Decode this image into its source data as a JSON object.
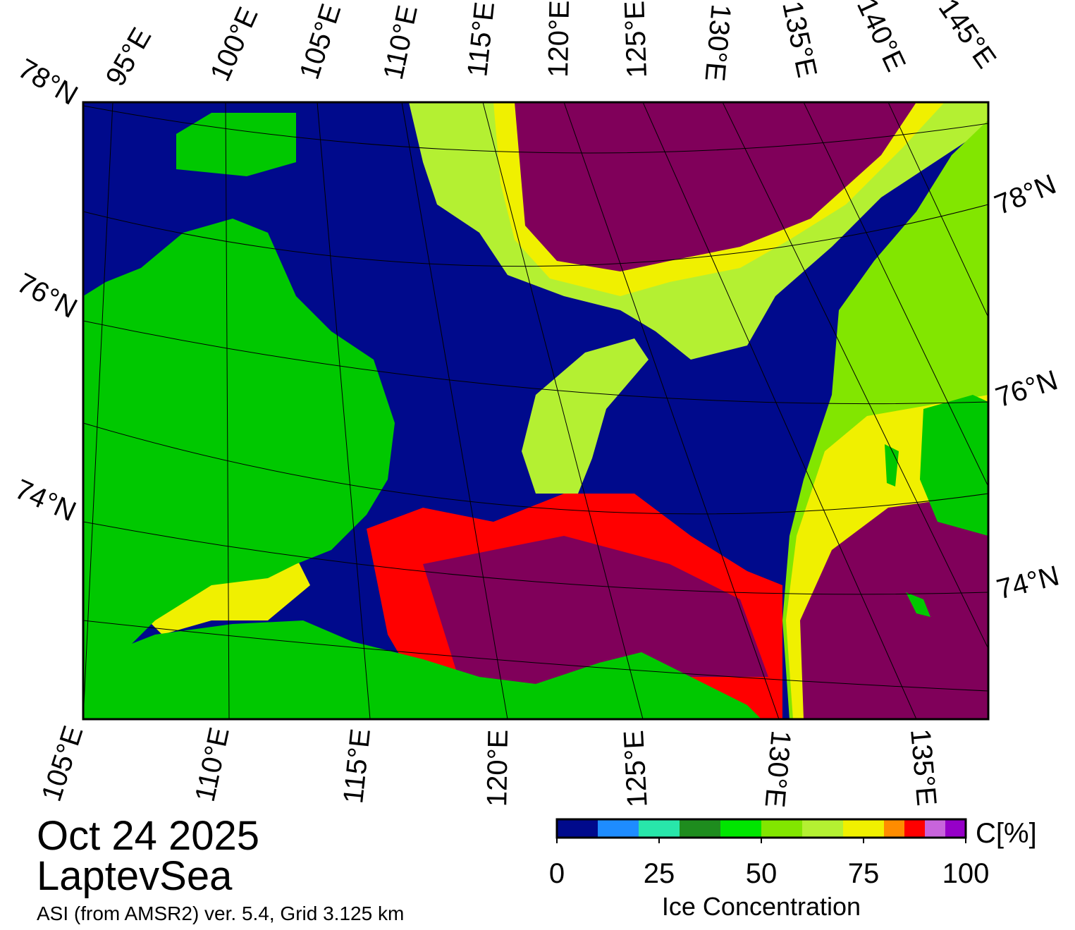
{
  "map": {
    "top_labels": [
      "95°E",
      "100°E",
      "105°E",
      "110°E",
      "115°E",
      "120°E",
      "125°E",
      "130°E",
      "135°E",
      "140°E",
      "145°E"
    ],
    "left_labels": [
      "78°N",
      "76°N",
      "74°N"
    ],
    "right_labels": [
      "78°N",
      "76°N",
      "74°N"
    ],
    "bottom_labels": [
      "105°E",
      "110°E",
      "115°E",
      "120°E",
      "125°E",
      "130°E",
      "135°E"
    ]
  },
  "date": "Oct 24 2025",
  "region": "LaptevSea",
  "source": "ASI (from AMSR2) ver. 5.4,  Grid 3.125 km",
  "colorbar": {
    "title": "Ice Concentration",
    "unit": "C[%]",
    "bins": [
      0,
      10,
      20,
      30,
      40,
      50,
      60,
      70,
      80,
      85,
      90,
      95,
      100
    ],
    "colors": [
      "#000a8c",
      "#1e8cff",
      "#28e6aa",
      "#1e8c1e",
      "#00e600",
      "#82e600",
      "#b4f032",
      "#f0f000",
      "#ff8c00",
      "#ff0000",
      "#c864dc",
      "#9600c8"
    ],
    "ticks": [
      0,
      25,
      50,
      75,
      100
    ]
  }
}
